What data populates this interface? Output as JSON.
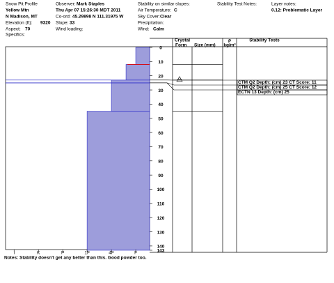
{
  "header": {
    "title": "Snow Pit Profile",
    "location": "Yellow Mtn",
    "region": "N Madison, MT",
    "elevation_label": "Elevation (ft):",
    "elevation": 9320,
    "aspect_label": "Aspect:",
    "aspect": 70,
    "specifics_label": "Specifics:",
    "observer_label": "Observer:",
    "observer": "Mark Staples",
    "datetime": "Thu Apr 07 15:26:30 MDT 2011",
    "coord_label": "Co-ord:",
    "coord": "45.29898 N 111.31975 W",
    "slope_label": "Slope:",
    "slope": 33,
    "wind_loading_label": "Wind loading:",
    "stability_label": "Stability on similar slopes:",
    "air_temp_label": "Air Temperature:",
    "air_temp_unit": "C",
    "sky_label": "Sky Cover:",
    "sky": "Clear",
    "precip_label": "Precipitation:",
    "wind_label": "Wind:",
    "wind": "Calm",
    "test_notes_label": "Stability Test Notes:",
    "layer_notes_label": "Layer notes:",
    "layer_note": "0.12: Problematic Layer"
  },
  "chart_data": {
    "type": "snowprofile",
    "columns": {
      "crystal": "Crystal",
      "form": "Form",
      "size": "Size (mm)",
      "density": "ρ",
      "density_unit": "kg/m³",
      "tests": "Stability Tests"
    },
    "layers": {
      "top": [
        0,
        12,
        23,
        45
      ],
      "bottom": [
        12,
        23,
        45,
        143
      ],
      "hardness": [
        1,
        1.4,
        2,
        3
      ]
    },
    "color": "#9d9ddb",
    "edge_color": "#2d2dc8",
    "problem_depth": 12,
    "problem_color": "#e00000",
    "ylim": [
      0,
      143
    ],
    "yticks": [
      0,
      10,
      20,
      30,
      40,
      50,
      60,
      70,
      80,
      90,
      100,
      110,
      120,
      130,
      140,
      143
    ],
    "xlim": [
      6.35,
      0.43
    ],
    "xticks": [
      {
        "value": 6,
        "label": "I"
      },
      {
        "value": 5,
        "label": "K"
      },
      {
        "value": 4,
        "label": "P"
      },
      {
        "value": 3,
        "label": "1F"
      },
      {
        "value": 2,
        "label": "4F"
      },
      {
        "value": 1,
        "label": "F"
      }
    ],
    "tests": [
      {
        "label": "CTM Q2 Depth: (cm) 23 CT Score: 11",
        "depth": 23
      },
      {
        "label": "CTM Q2 Depth: (cm) 25 CT Score: 12",
        "depth": 25
      },
      {
        "label": "ECTN 13  Depth: (cm) 25",
        "depth": 25
      }
    ]
  },
  "notes": "Notes:  Stability doesn't get any better than this.  Good powder too."
}
